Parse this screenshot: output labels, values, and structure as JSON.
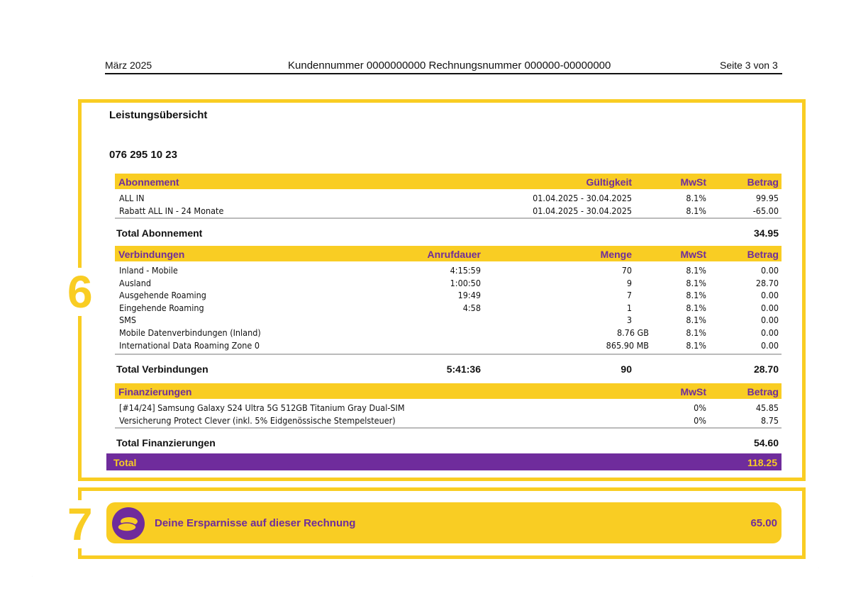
{
  "header": {
    "date": "März 2025",
    "customer": "Kundennummer 0000000000 Rechnungsnummer  000000-00000000",
    "page": "Seite 3 von 3"
  },
  "annotations": {
    "six": "6",
    "seven": "7"
  },
  "title": "Leistungsübersicht",
  "phone": "076 295 10 23",
  "abo": {
    "headers": [
      "Abonnement",
      "Gültigkeit",
      "MwSt",
      "Betrag"
    ],
    "rows": [
      [
        "ALL IN",
        "01.04.2025 - 30.04.2025",
        "8.1%",
        "99.95"
      ],
      [
        "Rabatt ALL IN - 24 Monate",
        "01.04.2025 - 30.04.2025",
        "8.1%",
        "-65.00"
      ]
    ],
    "total_label": "Total Abonnement",
    "total": "34.95"
  },
  "verb": {
    "headers": [
      "Verbindungen",
      "Anrufdauer",
      "Menge",
      "MwSt",
      "Betrag"
    ],
    "rows": [
      [
        "Inland - Mobile",
        "4:15:59",
        "70",
        "8.1%",
        "0.00"
      ],
      [
        "Ausland",
        "1:00:50",
        "9",
        "8.1%",
        "28.70"
      ],
      [
        "Ausgehende Roaming",
        "19:49",
        "7",
        "8.1%",
        "0.00"
      ],
      [
        "Eingehende Roaming",
        "4:58",
        "1",
        "8.1%",
        "0.00"
      ],
      [
        "SMS",
        "",
        "3",
        "8.1%",
        "0.00"
      ],
      [
        "Mobile Datenverbindungen (Inland)",
        "",
        "8.76 GB",
        "8.1%",
        "0.00"
      ],
      [
        "International Data Roaming Zone 0",
        "",
        "865.90 MB",
        "8.1%",
        "0.00"
      ]
    ],
    "total_label": "Total Verbindungen",
    "total_duration": "5:41:36",
    "total_qty": "90",
    "total": "28.70"
  },
  "fin": {
    "headers": [
      "Finanzierungen",
      "MwSt",
      "Betrag"
    ],
    "rows": [
      [
        "[#14/24] Samsung Galaxy S24 Ultra 5G 512GB Titanium Gray Dual-SIM",
        "0%",
        "45.85"
      ],
      [
        "Versicherung Protect Clever (inkl. 5% Eidgenössische Stempelsteuer)",
        "0%",
        "8.75"
      ]
    ],
    "total_label": "Total Finanzierungen",
    "total": "54.60"
  },
  "grand": {
    "label": "Total",
    "value": "118.25"
  },
  "savings": {
    "label": "Deine Ersparnisse auf dieser Rechnung",
    "value": "65.00",
    "icon": "coins-icon"
  },
  "colors": {
    "yellow": "#f9cd23",
    "purple": "#6f2c9c"
  }
}
